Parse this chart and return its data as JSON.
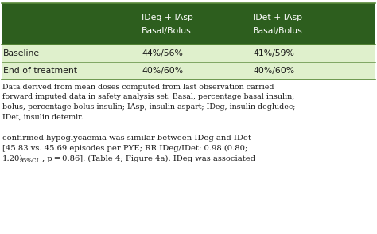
{
  "header_bg_color": "#2d5e1e",
  "header_text_color": "#ffffff",
  "row_bg_color": "#dff0cc",
  "border_color": "#5a8a3a",
  "col_headers": [
    [
      "IDeg + IAsp",
      "Basal/Bolus"
    ],
    [
      "IDet + IAsp",
      "Basal/Bolus"
    ]
  ],
  "row_labels": [
    "Baseline",
    "End of treatment"
  ],
  "data": [
    [
      "44%/56%",
      "41%/59%"
    ],
    [
      "40%/60%",
      "40%/60%"
    ]
  ],
  "footnote_line1": "Data derived from mean doses computed from last observation carried",
  "footnote_line2": "forward imputed data in safety analysis set. Basal, percentage basal insulin;",
  "footnote_line3": "bolus, percentage bolus insulin; IAsp, insulin aspart; IDeg, insulin degludec;",
  "footnote_line4": "IDet, insulin detemir.",
  "bottom_line1": "confirmed hypoglycaemia was similar between IDeg and IDet",
  "bottom_line2": "[45.83 vs. 45.69 episodes per PYE; RR IDeg/IDet: 0.98 (0.80;",
  "bottom_line3_pre": "1.20)",
  "bottom_line3_sub": "95%CI",
  "bottom_line3_post": ", p = 0.86]. (Table 4; Figure 4a). IDeg was associated",
  "fig_width": 4.74,
  "fig_height": 2.94,
  "dpi": 100
}
